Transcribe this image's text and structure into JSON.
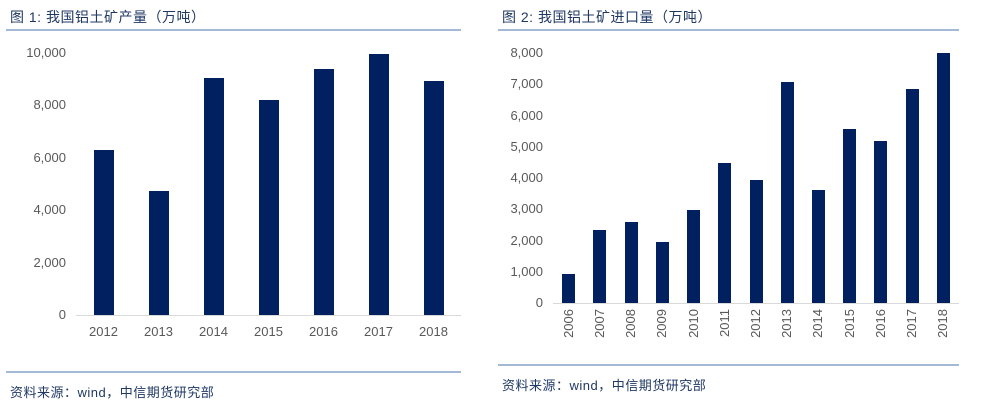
{
  "colors": {
    "background": "#ffffff",
    "bar": "#002060",
    "title_text": "#1f3864",
    "source_text": "#1f3864",
    "rule": "#a3b9d6",
    "tick_label": "#595959",
    "axis_line": "#d9d9d9"
  },
  "panels": [
    {
      "title": "图 1: 我国铝土矿产量（万吨）",
      "source": "资料来源：wind，中信期货研究部"
    },
    {
      "title": "图 2: 我国铝土矿进口量（万吨）",
      "source": "资料来源：wind，中信期货研究部"
    }
  ],
  "chart_data": [
    {
      "type": "bar",
      "title": "图 1: 我国铝土矿产量（万吨）",
      "categories": [
        "2012",
        "2013",
        "2014",
        "2015",
        "2016",
        "2017",
        "2018"
      ],
      "values": [
        6300,
        4730,
        9040,
        8200,
        9380,
        9970,
        8930
      ],
      "xlabel": "",
      "ylabel": "",
      "ylim": [
        0,
        10000
      ],
      "ytick_step": 2000,
      "grid": false,
      "legend": false,
      "x_labels_rotated": false,
      "bar_color": "#002060"
    },
    {
      "type": "bar",
      "title": "图 2: 我国铝土矿进口量（万吨）",
      "categories": [
        "2006",
        "2007",
        "2008",
        "2009",
        "2010",
        "2011",
        "2012",
        "2013",
        "2014",
        "2015",
        "2016",
        "2017",
        "2018"
      ],
      "values": [
        930,
        2330,
        2580,
        1960,
        2980,
        4490,
        3940,
        7060,
        3620,
        5570,
        5180,
        6850,
        7990
      ],
      "xlabel": "",
      "ylabel": "",
      "ylim": [
        0,
        8000
      ],
      "ytick_step": 1000,
      "grid": false,
      "legend": false,
      "x_labels_rotated": true,
      "bar_color": "#002060"
    }
  ]
}
